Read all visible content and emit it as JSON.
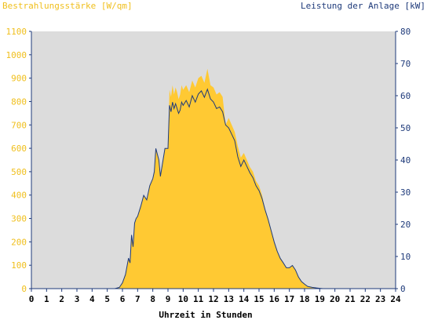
{
  "chart_data": {
    "type": "area",
    "title_left": "Bestrahlungsstärke [W/qm]",
    "title_right": "Leistung der Anlage [kW]",
    "xlabel": "Uhrzeit in Stunden",
    "xlim": [
      0,
      24
    ],
    "x_ticks": [
      "0",
      "1",
      "2",
      "3",
      "4",
      "5",
      "6",
      "7",
      "8",
      "9",
      "10",
      "11",
      "12",
      "13",
      "14",
      "15",
      "16",
      "17",
      "18",
      "19",
      "20",
      "21",
      "22",
      "23",
      "24"
    ],
    "ylim_left": [
      0,
      1100
    ],
    "y_ticks_left": [
      "0",
      "100",
      "200",
      "300",
      "400",
      "500",
      "600",
      "700",
      "800",
      "900",
      "1000",
      "1100"
    ],
    "ylim_right": [
      0,
      80
    ],
    "y_ticks_right": [
      "0",
      "10",
      "20",
      "30",
      "40",
      "50",
      "60",
      "70",
      "80"
    ],
    "colors": {
      "irradiance_fill": "#ffc933",
      "power_line": "#1e3a7a",
      "plot_bg": "#dcdcdc",
      "axis": "#1e3a7a"
    },
    "series": [
      {
        "type": "area",
        "axis": "left",
        "x": [
          0,
          5.5,
          5.8,
          6.0,
          6.2,
          6.4,
          6.5,
          6.6,
          6.7,
          6.8,
          6.9,
          7.0,
          7.2,
          7.4,
          7.6,
          7.8,
          8.0,
          8.1,
          8.2,
          8.4,
          8.5,
          8.6,
          8.7,
          8.8,
          9.0,
          9.1,
          9.2,
          9.3,
          9.4,
          9.5,
          9.6,
          9.7,
          9.8,
          9.9,
          10.0,
          10.2,
          10.4,
          10.6,
          10.8,
          11.0,
          11.2,
          11.4,
          11.6,
          11.8,
          12.0,
          12.2,
          12.4,
          12.6,
          12.8,
          13.0,
          13.2,
          13.4,
          13.6,
          13.8,
          14.0,
          14.2,
          14.4,
          14.6,
          14.8,
          15.0,
          15.2,
          15.4,
          15.6,
          15.8,
          16.0,
          16.2,
          16.4,
          16.6,
          16.8,
          17.0,
          17.2,
          17.4,
          17.6,
          17.8,
          18.0,
          18.2,
          18.5,
          18.8,
          19.0,
          19.2,
          24
        ],
        "y": [
          0,
          0,
          5,
          25,
          60,
          130,
          110,
          230,
          180,
          280,
          300,
          310,
          350,
          400,
          380,
          440,
          470,
          500,
          600,
          550,
          480,
          520,
          560,
          600,
          600,
          850,
          820,
          870,
          830,
          860,
          840,
          810,
          830,
          870,
          850,
          870,
          840,
          890,
          860,
          900,
          910,
          880,
          940,
          870,
          860,
          830,
          840,
          820,
          700,
          730,
          700,
          670,
          610,
          560,
          580,
          550,
          520,
          500,
          460,
          440,
          400,
          340,
          300,
          250,
          200,
          160,
          130,
          110,
          90,
          90,
          100,
          80,
          50,
          30,
          20,
          10,
          5,
          3,
          1,
          0,
          0
        ]
      },
      {
        "type": "line",
        "axis": "right",
        "x": [
          0,
          5.5,
          5.8,
          6.0,
          6.2,
          6.4,
          6.5,
          6.6,
          6.7,
          6.8,
          6.9,
          7.0,
          7.2,
          7.4,
          7.6,
          7.8,
          8.0,
          8.1,
          8.2,
          8.4,
          8.5,
          8.6,
          8.7,
          8.8,
          9.0,
          9.1,
          9.2,
          9.3,
          9.4,
          9.5,
          9.6,
          9.7,
          9.8,
          9.9,
          10.0,
          10.2,
          10.4,
          10.6,
          10.8,
          11.0,
          11.2,
          11.4,
          11.6,
          11.8,
          12.0,
          12.2,
          12.4,
          12.6,
          12.8,
          13.0,
          13.2,
          13.4,
          13.6,
          13.8,
          14.0,
          14.2,
          14.4,
          14.6,
          14.8,
          15.0,
          15.2,
          15.4,
          15.6,
          15.8,
          16.0,
          16.2,
          16.4,
          16.6,
          16.8,
          17.0,
          17.2,
          17.4,
          17.6,
          17.8,
          18.0,
          18.2,
          18.5,
          18.8,
          19.0,
          19.2,
          24
        ],
        "y": [
          0,
          0,
          0.4,
          1.8,
          4.4,
          9.5,
          8,
          16.7,
          13,
          20.4,
          21.8,
          22.5,
          25.5,
          29,
          27.6,
          32,
          34.2,
          36.4,
          43.6,
          40,
          34.9,
          37.8,
          40.7,
          43.6,
          43.6,
          57,
          55,
          58,
          56,
          57.5,
          56,
          54.5,
          55.5,
          58,
          57,
          58.5,
          56.5,
          60,
          58,
          60.5,
          61.5,
          59.5,
          62,
          59,
          58,
          56,
          56.5,
          55,
          50.9,
          50,
          48,
          46,
          41,
          38,
          40,
          38,
          36,
          34.5,
          32,
          30.5,
          28,
          24.5,
          21.5,
          18,
          14.5,
          11.6,
          9.4,
          8,
          6.5,
          6.5,
          7.2,
          5.8,
          3.6,
          2.2,
          1.4,
          0.7,
          0.4,
          0.2,
          0.1,
          0,
          0
        ]
      }
    ]
  }
}
